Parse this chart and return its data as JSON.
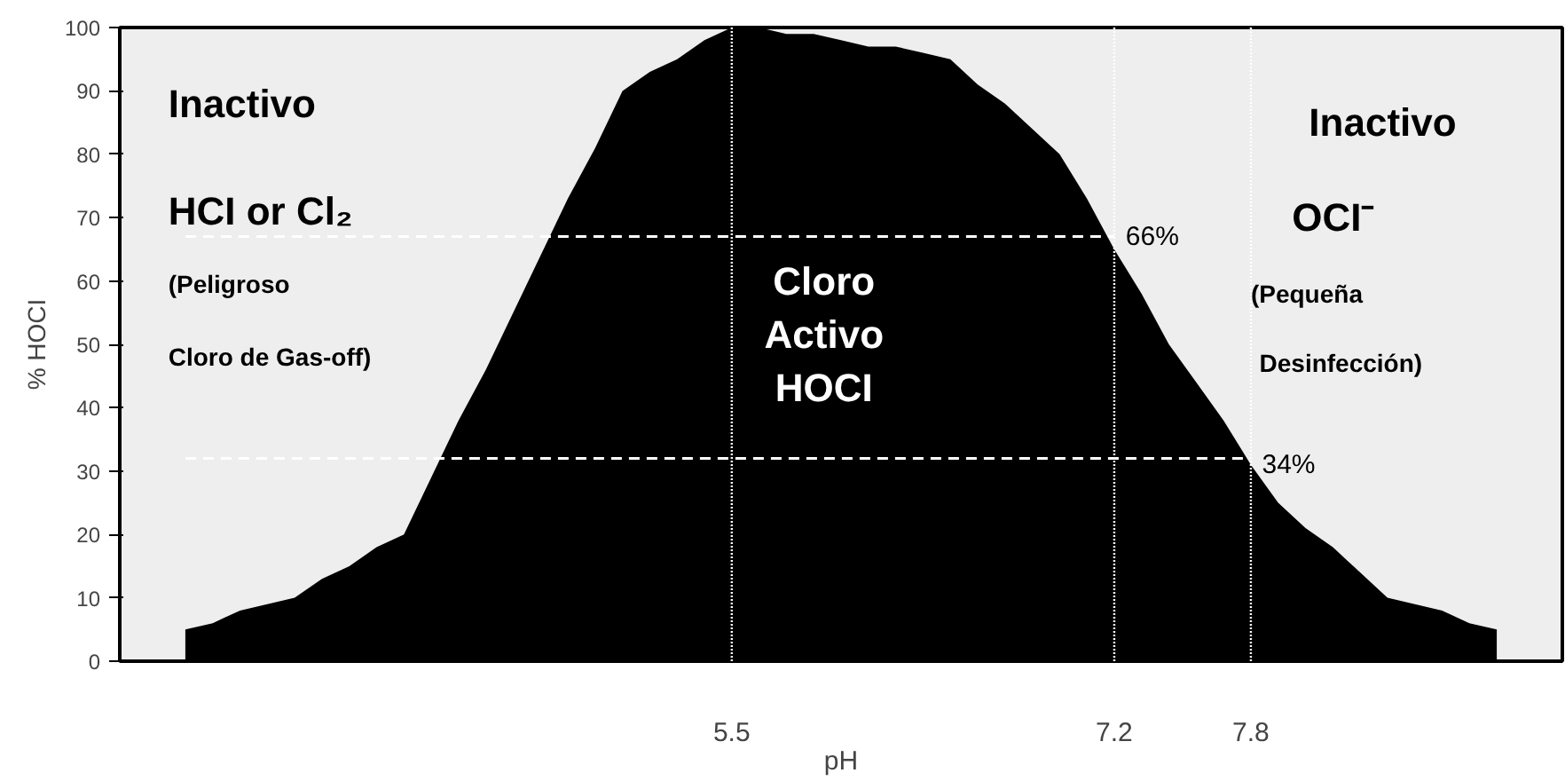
{
  "chart_data": {
    "type": "area",
    "xlabel": "pH",
    "ylabel": "% HOCI",
    "categories": [
      null,
      null,
      null,
      null,
      null,
      null,
      null,
      null,
      null,
      null,
      null,
      null,
      null,
      null,
      null,
      null,
      null,
      null,
      null,
      null,
      "5.5",
      null,
      null,
      null,
      null,
      null,
      null,
      null,
      null,
      null,
      null,
      null,
      null,
      null,
      "7.2",
      null,
      null,
      null,
      null,
      "7.8",
      null,
      null,
      null,
      null,
      null,
      null,
      null,
      null,
      null
    ],
    "series": [
      {
        "color": "#000000",
        "values": [
          5,
          6,
          8,
          9,
          10,
          13,
          15,
          18,
          20,
          29,
          38,
          46,
          55,
          64,
          73,
          81,
          90,
          93,
          95,
          98,
          100,
          100,
          99,
          99,
          98,
          97,
          97,
          96,
          95,
          91,
          88,
          84,
          80,
          73,
          65,
          58,
          50,
          44,
          38,
          31,
          25,
          21,
          18,
          14,
          10,
          9,
          8,
          6,
          5
        ]
      },
      {
        "type": "line",
        "color": "#ffffff",
        "line_style": "dashed",
        "values": [
          67,
          67,
          67,
          67,
          67,
          67,
          67,
          67,
          67,
          67,
          67,
          67,
          67,
          67,
          67,
          67,
          67,
          67,
          67,
          67,
          67,
          67,
          67,
          67,
          67,
          67,
          67,
          67,
          67,
          67,
          67,
          67,
          67,
          67,
          67,
          null,
          null,
          null,
          null,
          null,
          null,
          null,
          null,
          null,
          null,
          null,
          null,
          null,
          null
        ]
      },
      {
        "type": "line",
        "color": "#ffffff",
        "line_style": "dashed",
        "values": [
          32,
          32,
          32,
          32,
          32,
          32,
          32,
          32,
          32,
          32,
          32,
          32,
          32,
          32,
          32,
          32,
          32,
          32,
          32,
          32,
          32,
          32,
          32,
          32,
          32,
          32,
          32,
          32,
          32,
          32,
          32,
          32,
          32,
          32,
          32,
          32,
          32,
          32,
          32,
          32,
          null,
          null,
          null,
          null,
          null,
          null,
          null,
          null,
          null
        ]
      }
    ],
    "ylim": [
      0,
      100
    ],
    "yticks": [
      0,
      10,
      20,
      30,
      40,
      50,
      60,
      70,
      80,
      90,
      100
    ],
    "grid": false,
    "ref_lines": [
      {
        "axis": "x",
        "value": "5.5",
        "color": "#ffffff",
        "line_style": "dotted"
      },
      {
        "axis": "x",
        "value": "7.2",
        "color": "#ffffff",
        "line_style": "dotted"
      },
      {
        "axis": "x",
        "value": "7.8",
        "color": "#ffffff",
        "line_style": "dotted"
      }
    ],
    "annotations": [
      "Inactivo",
      "HCI or Cl₂",
      "(Peligroso",
      "Cloro de Gas-off)",
      "Cloro\nActivo\nHOCI",
      "Inactivo",
      "OCI⁻",
      "(Pequeña",
      "Desinfección)",
      "66%",
      "34%"
    ]
  }
}
